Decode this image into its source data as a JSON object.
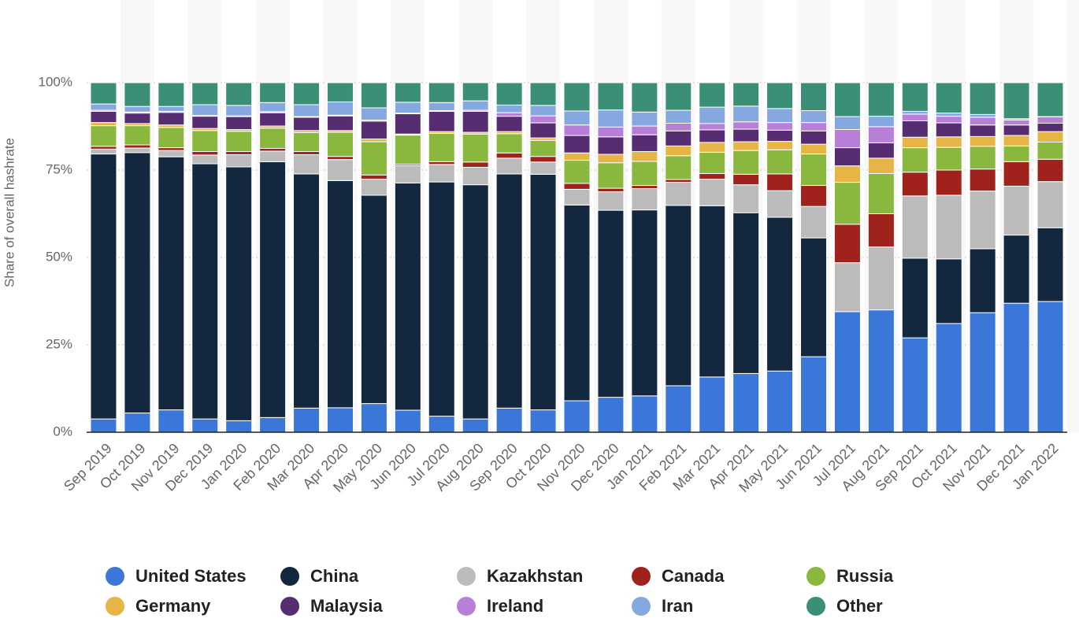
{
  "chart_data": {
    "type": "stacked_bar",
    "y_axis_label": "Share of overall hashrate",
    "categories": [
      "Sep 2019",
      "Oct 2019",
      "Nov 2019",
      "Dec 2019",
      "Jan 2020",
      "Feb 2020",
      "Mar 2020",
      "Apr 2020",
      "May 2020",
      "Jun 2020",
      "Jul 2020",
      "Aug 2020",
      "Sep 2020",
      "Oct 2020",
      "Nov 2020",
      "Dec 2020",
      "Jan 2021",
      "Feb 2021",
      "Mar 2021",
      "Apr 2021",
      "May 2021",
      "Jun 2021",
      "Jul 2021",
      "Aug 2021",
      "Sep 2021",
      "Oct 2021",
      "Nov 2021",
      "Dec 2021",
      "Jan 2022"
    ],
    "series": [
      {
        "name": "United States",
        "color": "#3a77d8",
        "values": [
          3.8,
          5.5,
          6.4,
          3.8,
          3.3,
          4.2,
          6.9,
          7.0,
          8.2,
          6.3,
          4.6,
          3.8,
          6.9,
          6.4,
          9.0,
          10.0,
          10.4,
          13.3,
          15.8,
          16.8,
          17.5,
          21.6,
          34.5,
          35.0,
          27.0,
          31.1,
          34.2,
          36.9,
          37.4
        ]
      },
      {
        "name": "China",
        "color": "#13273f",
        "values": [
          75.8,
          74.5,
          72.4,
          73.0,
          72.6,
          73.2,
          67.0,
          65.0,
          59.6,
          65.0,
          67.0,
          67.0,
          67.0,
          67.4,
          56.0,
          53.5,
          53.2,
          51.6,
          49.0,
          46.0,
          44.0,
          34.0,
          0,
          0,
          22.8,
          18.5,
          18.3,
          19.5,
          21.1
        ]
      },
      {
        "name": "Kazakhstan",
        "color": "#bbbbbb",
        "values": [
          1.4,
          1.3,
          1.8,
          2.5,
          3.5,
          3.0,
          5.5,
          6.0,
          4.6,
          5.0,
          5.0,
          5.0,
          4.5,
          3.5,
          4.5,
          5.3,
          6.1,
          6.6,
          7.6,
          8.0,
          7.6,
          9.0,
          14.0,
          18.0,
          17.8,
          18.2,
          16.5,
          14.0,
          13.2
        ]
      },
      {
        "name": "Canada",
        "color": "#a0221d",
        "values": [
          0.8,
          0.9,
          0.8,
          1.0,
          0.9,
          0.8,
          0.9,
          0.9,
          1.2,
          0.4,
          0.8,
          1.5,
          1.5,
          1.6,
          1.7,
          1.0,
          0.9,
          0.8,
          1.6,
          3.0,
          4.8,
          6.0,
          11.0,
          9.5,
          6.8,
          7.2,
          6.3,
          7.0,
          6.4
        ]
      },
      {
        "name": "Russia",
        "color": "#8ab73e",
        "values": [
          5.9,
          5.5,
          5.8,
          6.0,
          5.8,
          5.8,
          5.4,
          6.9,
          9.5,
          8.3,
          8.1,
          8.0,
          5.5,
          4.6,
          6.6,
          7.3,
          6.9,
          6.8,
          6.1,
          6.8,
          6.9,
          9.0,
          12.0,
          11.5,
          7.0,
          6.5,
          6.5,
          4.5,
          4.9
        ]
      },
      {
        "name": "Germany",
        "color": "#e6b545",
        "values": [
          0.9,
          0.6,
          0.7,
          0.6,
          0.5,
          0.6,
          0.6,
          0.5,
          0.8,
          0.3,
          0.5,
          0.5,
          0.6,
          0.7,
          2.1,
          2.4,
          2.8,
          2.8,
          2.8,
          2.5,
          2.4,
          2.8,
          4.7,
          4.4,
          3.0,
          3.0,
          2.8,
          3.0,
          3.0
        ]
      },
      {
        "name": "Malaysia",
        "color": "#572d72",
        "values": [
          3.2,
          3.0,
          3.6,
          3.5,
          3.7,
          3.8,
          3.8,
          4.2,
          5.1,
          5.8,
          5.8,
          6.0,
          4.4,
          4.3,
          5.0,
          5.0,
          4.8,
          4.3,
          3.6,
          3.6,
          3.2,
          3.8,
          5.2,
          4.4,
          4.7,
          4.0,
          3.3,
          3.0,
          2.4
        ]
      },
      {
        "name": "Ireland",
        "color": "#b87fd8",
        "values": [
          0.3,
          0.3,
          0.3,
          0.2,
          0.2,
          0.3,
          0.2,
          0.2,
          0.3,
          0.2,
          0.2,
          0.3,
          1.0,
          2.0,
          3.0,
          2.8,
          2.5,
          2.2,
          1.8,
          2.1,
          2.2,
          2.4,
          5.2,
          4.6,
          1.9,
          1.9,
          2.2,
          1.4,
          1.8
        ]
      },
      {
        "name": "Iran",
        "color": "#86a8e0",
        "values": [
          1.8,
          1.6,
          1.4,
          3.1,
          3.0,
          2.6,
          3.4,
          3.8,
          3.5,
          3.1,
          2.3,
          2.7,
          2.2,
          3.0,
          4.0,
          4.9,
          4.0,
          3.7,
          4.7,
          4.5,
          4.0,
          3.4,
          3.7,
          3.0,
          0.8,
          0.9,
          0.8,
          0.4,
          0.1
        ]
      },
      {
        "name": "Other",
        "color": "#3b8f77",
        "values": [
          6.1,
          6.8,
          6.8,
          6.3,
          6.5,
          5.7,
          6.3,
          5.5,
          7.2,
          5.6,
          5.7,
          5.2,
          6.4,
          6.5,
          8.1,
          7.8,
          8.4,
          7.9,
          7.0,
          6.7,
          7.4,
          8.0,
          9.7,
          9.6,
          8.2,
          8.7,
          9.1,
          10.3,
          9.7
        ]
      }
    ],
    "ylim": [
      0,
      100
    ],
    "yticks": [
      {
        "value": 0,
        "label": "0%"
      },
      {
        "value": 25,
        "label": "25%"
      },
      {
        "value": 50,
        "label": "50%"
      },
      {
        "value": 75,
        "label": "75%"
      },
      {
        "value": 100,
        "label": "100%"
      }
    ],
    "grid": true
  }
}
